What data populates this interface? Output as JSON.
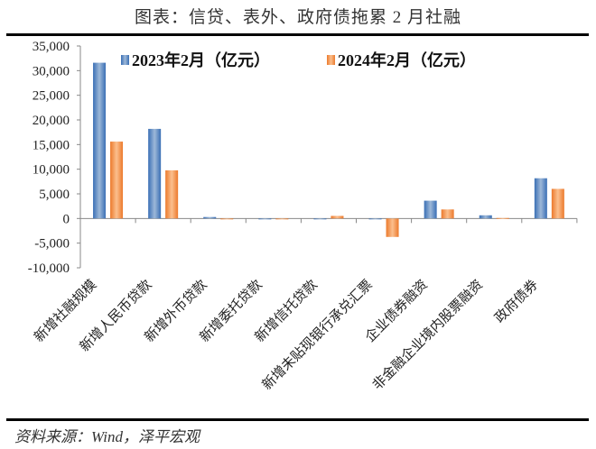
{
  "title": "图表：信贷、表外、政府债拖累 2 月社融",
  "source": "资料来源：Wind，泽平宏观",
  "chart_data": {
    "type": "bar",
    "categories": [
      "新增社融规模",
      "新增人民币贷款",
      "新增外币贷款",
      "新增委托贷款",
      "新增信托贷款",
      "新增未贴现银行承兑汇票",
      "企业债券融资",
      "非金融企业境内股票融资",
      "政府债券"
    ],
    "series": [
      {
        "name": "2023年2月（亿元）",
        "color": "#4a7ebb",
        "values": [
          31600,
          18184,
          300,
          -100,
          -60,
          -100,
          3614,
          650,
          8163
        ]
      },
      {
        "name": "2024年2月（亿元）",
        "color": "#f79646",
        "values": [
          15600,
          9773,
          -50,
          -50,
          525,
          -3744,
          1838,
          100,
          6011
        ]
      }
    ],
    "ylim": [
      -10000,
      35000
    ],
    "yticks": [
      "35,000",
      "30,000",
      "25,000",
      "20,000",
      "15,000",
      "10,000",
      "5,000",
      "0",
      "-5,000",
      "-10,000"
    ],
    "ytick_values": [
      35000,
      30000,
      25000,
      20000,
      15000,
      10000,
      5000,
      0,
      -5000,
      -10000
    ],
    "legend_placement": "top",
    "grid": false
  }
}
